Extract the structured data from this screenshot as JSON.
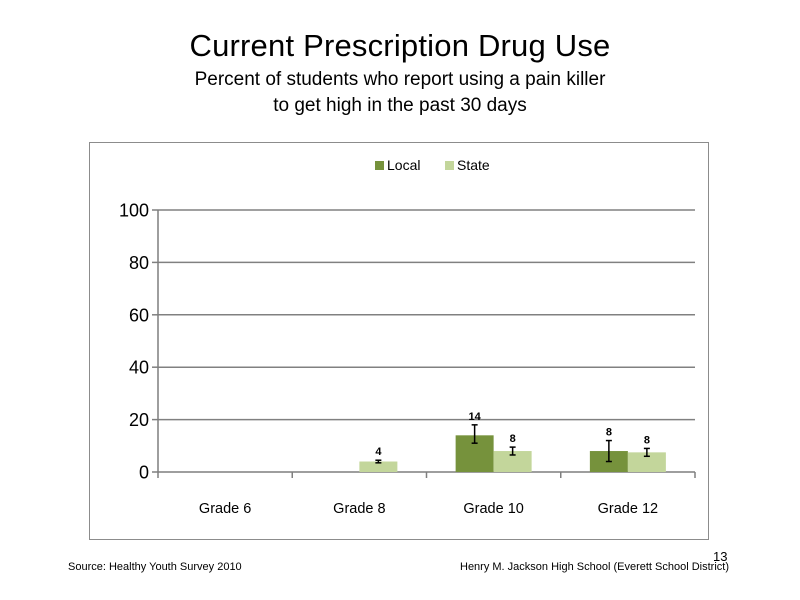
{
  "slide": {
    "title": "Current Prescription Drug Use",
    "subtitle_line1": "Percent of students who report using a pain killer",
    "subtitle_line2": "to get high in the past 30 days",
    "source": "Source: Healthy Youth Survey 2010",
    "school": "Henry M. Jackson High School (Everett School District)",
    "page_number": "13"
  },
  "chart_data": {
    "type": "bar",
    "title": "",
    "xlabel": "",
    "ylabel": "",
    "ylim": [
      0,
      100
    ],
    "yticks": [
      0,
      20,
      40,
      60,
      80,
      100
    ],
    "grid": true,
    "legend_position": "top",
    "categories": [
      "Grade 6",
      "Grade 8",
      "Grade 10",
      "Grade 12"
    ],
    "series": [
      {
        "name": "Local",
        "color": "#76923c",
        "values": [
          null,
          null,
          14,
          8
        ],
        "labels": [
          null,
          null,
          "14",
          "8"
        ],
        "error_low": [
          null,
          null,
          11,
          4
        ],
        "error_high": [
          null,
          null,
          18,
          12
        ]
      },
      {
        "name": "State",
        "color": "#c3d69b",
        "values": [
          null,
          4,
          8,
          7.5
        ],
        "labels": [
          null,
          "4",
          "8",
          "8"
        ],
        "error_low": [
          null,
          3.5,
          6.5,
          6
        ],
        "error_high": [
          null,
          4.5,
          9.5,
          9
        ]
      }
    ]
  }
}
